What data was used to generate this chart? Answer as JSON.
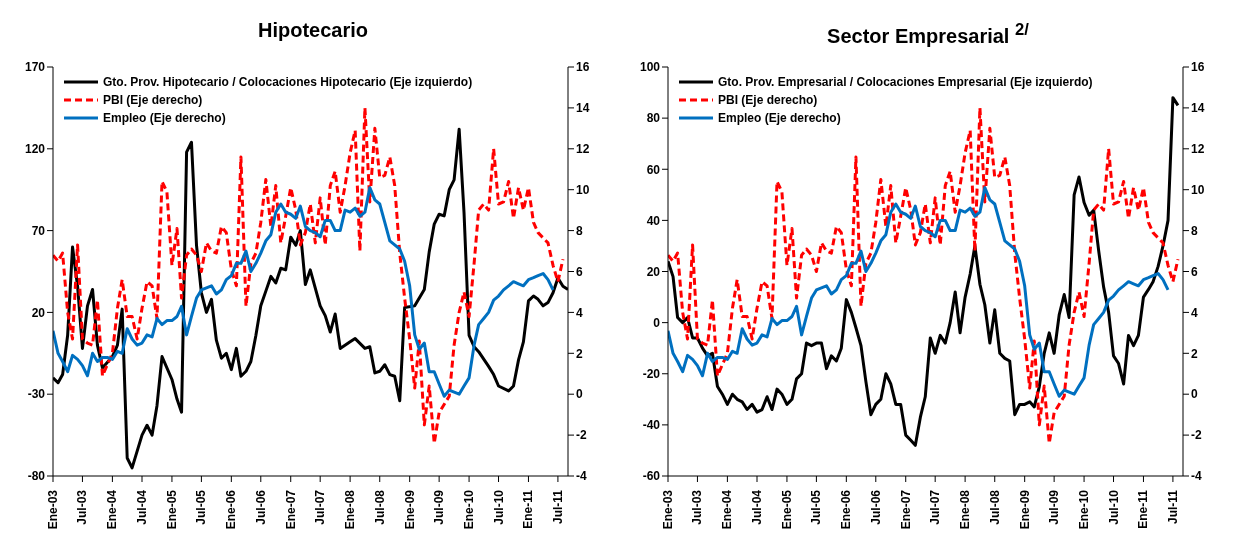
{
  "chart_data": [
    {
      "type": "line",
      "title": "Hipotecario",
      "legend": "top left",
      "marker": "none",
      "grid": false,
      "xlim": [
        "2003-01",
        "2011-09"
      ],
      "xticks": [
        {
          "value": "2003-01",
          "label": "Ene-03"
        },
        {
          "value": "2003-07",
          "label": "Jul-03"
        },
        {
          "value": "2004-01",
          "label": "Ene-04"
        },
        {
          "value": "2004-07",
          "label": "Jul-04"
        },
        {
          "value": "2005-01",
          "label": "Ene-05"
        },
        {
          "value": "2005-07",
          "label": "Jul-05"
        },
        {
          "value": "2006-01",
          "label": "Ene-06"
        },
        {
          "value": "2006-07",
          "label": "Jul-06"
        },
        {
          "value": "2007-01",
          "label": "Ene-07"
        },
        {
          "value": "2007-07",
          "label": "Jul-07"
        },
        {
          "value": "2008-01",
          "label": "Ene-08"
        },
        {
          "value": "2008-07",
          "label": "Jul-08"
        },
        {
          "value": "2009-01",
          "label": "Ene-09"
        },
        {
          "value": "2009-07",
          "label": "Jul-09"
        },
        {
          "value": "2010-01",
          "label": "Ene-10"
        },
        {
          "value": "2010-07",
          "label": "Jul-10"
        },
        {
          "value": "2011-01",
          "label": "Ene-11"
        },
        {
          "value": "2011-07",
          "label": "Jul-11"
        }
      ],
      "ylim": [
        -80,
        170
      ],
      "yticks": [
        -80,
        -30,
        20,
        70,
        120,
        170
      ],
      "y2lim": [
        -4,
        16
      ],
      "y2ticks": [
        -4,
        -2,
        0,
        2,
        4,
        6,
        8,
        10,
        12,
        14,
        16
      ],
      "series": [
        {
          "name": "Gto. Prov. Hipotecario / Colocaciones Hipotecario (Eje izquierdo)",
          "color": "#000000",
          "line_style": "solid",
          "x": [
            "2003-01",
            "2003-02",
            "2003-03",
            "2003-04",
            "2003-05",
            "2003-06",
            "2003-07",
            "2003-08",
            "2003-09",
            "2003-10",
            "2003-11",
            "2004-01",
            "2004-02",
            "2004-03",
            "2004-04",
            "2004-05",
            "2004-07",
            "2004-08",
            "2004-09",
            "2004-10",
            "2004-11",
            "2005-01",
            "2005-02",
            "2005-03",
            "2005-04",
            "2005-05",
            "2005-06",
            "2005-07",
            "2005-08",
            "2005-09",
            "2005-10",
            "2005-11",
            "2005-12",
            "2006-01",
            "2006-02",
            "2006-03",
            "2006-04",
            "2006-05",
            "2006-06",
            "2006-07",
            "2006-08",
            "2006-09",
            "2006-10",
            "2006-11",
            "2006-12",
            "2007-01",
            "2007-02",
            "2007-03",
            "2007-04",
            "2007-05",
            "2007-07",
            "2007-08",
            "2007-09",
            "2007-10",
            "2007-11",
            "2008-01",
            "2008-02",
            "2008-04",
            "2008-05",
            "2008-06",
            "2008-07",
            "2008-08",
            "2008-09",
            "2008-10",
            "2008-11",
            "2008-12",
            "2009-02",
            "2009-04",
            "2009-05",
            "2009-06",
            "2009-07",
            "2009-08",
            "2009-09",
            "2009-10",
            "2009-11",
            "2009-12",
            "2010-01",
            "2010-02",
            "2010-03",
            "2010-05",
            "2010-06",
            "2010-07",
            "2010-09",
            "2010-10",
            "2010-11",
            "2010-12",
            "2011-01",
            "2011-02",
            "2011-03",
            "2011-04",
            "2011-05",
            "2011-06",
            "2011-07",
            "2011-08",
            "2011-09"
          ],
          "values": [
            -20,
            -23,
            -18,
            6,
            60,
            36,
            -2,
            24,
            34,
            0,
            -14,
            -7,
            0,
            22,
            -69,
            -75,
            -55,
            -49,
            -55,
            -37,
            -7,
            -21,
            -33,
            -41,
            118,
            124,
            61,
            32,
            20,
            28,
            3,
            -8,
            -5,
            -15,
            -2,
            -19,
            -16,
            -10,
            6,
            24,
            33,
            42,
            38,
            47,
            46,
            66,
            61,
            70,
            37,
            46,
            24,
            18,
            8,
            19,
            -2,
            2,
            4,
            -2,
            -1,
            -17,
            -16,
            -12,
            -18,
            -19,
            -34,
            23,
            24,
            34,
            57,
            74,
            80,
            79,
            95,
            101,
            132,
            81,
            6,
            -1,
            -4,
            -13,
            -18,
            -25,
            -28,
            -25,
            -9,
            2,
            27,
            30,
            28,
            24,
            26,
            32,
            41,
            36,
            34
          ]
        },
        {
          "name": "PBI (Eje derecho)",
          "color": "#ff0000",
          "line_style": "dashed",
          "axis": "y2",
          "x": [
            "2003-01",
            "2003-02",
            "2003-03",
            "2003-04",
            "2003-05",
            "2003-06",
            "2003-07",
            "2003-08",
            "2003-09",
            "2003-10",
            "2003-11",
            "2004-01",
            "2004-02",
            "2004-03",
            "2004-04",
            "2004-05",
            "2004-06",
            "2004-07",
            "2004-08",
            "2004-09",
            "2004-10",
            "2004-11",
            "2004-12",
            "2005-01",
            "2005-02",
            "2005-03",
            "2005-04",
            "2005-05",
            "2005-06",
            "2005-07",
            "2005-08",
            "2005-09",
            "2005-10",
            "2005-11",
            "2005-12",
            "2006-01",
            "2006-02",
            "2006-03",
            "2006-04",
            "2006-05",
            "2006-06",
            "2006-07",
            "2006-08",
            "2006-09",
            "2006-10",
            "2006-11",
            "2006-12",
            "2007-01",
            "2007-02",
            "2007-03",
            "2007-04",
            "2007-05",
            "2007-06",
            "2007-07",
            "2007-08",
            "2007-09",
            "2007-10",
            "2007-11",
            "2007-12",
            "2008-01",
            "2008-02",
            "2008-03",
            "2008-04",
            "2008-05",
            "2008-06",
            "2008-07",
            "2008-08",
            "2008-09",
            "2008-10",
            "2008-11",
            "2008-12",
            "2009-01",
            "2009-02",
            "2009-03",
            "2009-04",
            "2009-05",
            "2009-06",
            "2009-07",
            "2009-09",
            "2009-10",
            "2009-11",
            "2009-12",
            "2010-01",
            "2010-02",
            "2010-03",
            "2010-04",
            "2010-05",
            "2010-06",
            "2010-07",
            "2010-08",
            "2010-09",
            "2010-10",
            "2010-11",
            "2010-12",
            "2011-01",
            "2011-02",
            "2011-03",
            "2011-05",
            "2011-06",
            "2011-07",
            "2011-08"
          ],
          "values": [
            6.8,
            6.5,
            6.9,
            4.0,
            2.7,
            7.3,
            2.7,
            2.5,
            2.4,
            4.6,
            0.9,
            2.0,
            4.2,
            5.6,
            3.8,
            3.8,
            2.7,
            4.2,
            5.5,
            5.3,
            3.7,
            10.4,
            9.9,
            6.3,
            8.1,
            4.7,
            6.8,
            7.1,
            6.8,
            6.0,
            7.4,
            7.0,
            6.9,
            8.2,
            7.9,
            6.1,
            5.3,
            11.6,
            4.3,
            6.4,
            6.9,
            8.4,
            10.5,
            8.2,
            10.2,
            7.4,
            8.7,
            10.1,
            9.0,
            7.3,
            7.9,
            9.3,
            7.4,
            9.6,
            7.3,
            10.2,
            10.9,
            8.9,
            10.2,
            11.8,
            12.9,
            7.0,
            14.0,
            9.4,
            13.0,
            10.6,
            10.7,
            11.6,
            10.2,
            6.9,
            4.7,
            2.7,
            0.3,
            2.6,
            -1.5,
            0.4,
            -2.4,
            -0.9,
            -0.1,
            2.4,
            4.0,
            5.0,
            3.8,
            6.4,
            9.0,
            9.3,
            9.0,
            12.0,
            9.3,
            9.4,
            10.4,
            8.6,
            10.1,
            9.0,
            10.1,
            8.4,
            7.9,
            7.4,
            6.3,
            5.5,
            6.6
          ]
        },
        {
          "name": "Empleo (Eje derecho)",
          "color": "#0070c0",
          "line_style": "solid",
          "axis": "y2",
          "x": [
            "2003-01",
            "2003-02",
            "2003-03",
            "2003-04",
            "2003-05",
            "2003-06",
            "2003-07",
            "2003-08",
            "2003-09",
            "2003-10",
            "2003-11",
            "2003-12",
            "2004-01",
            "2004-02",
            "2004-03",
            "2004-04",
            "2004-05",
            "2004-06",
            "2004-07",
            "2004-08",
            "2004-09",
            "2004-10",
            "2004-11",
            "2004-12",
            "2005-01",
            "2005-02",
            "2005-03",
            "2005-04",
            "2005-05",
            "2005-06",
            "2005-07",
            "2005-08",
            "2005-09",
            "2005-10",
            "2005-11",
            "2005-12",
            "2006-01",
            "2006-02",
            "2006-03",
            "2006-04",
            "2006-05",
            "2006-06",
            "2006-07",
            "2006-08",
            "2006-09",
            "2006-10",
            "2006-11",
            "2006-12",
            "2007-01",
            "2007-02",
            "2007-03",
            "2007-04",
            "2007-05",
            "2007-06",
            "2007-07",
            "2007-08",
            "2007-09",
            "2007-10",
            "2007-11",
            "2007-12",
            "2008-01",
            "2008-02",
            "2008-03",
            "2008-04",
            "2008-05",
            "2008-06",
            "2008-07",
            "2008-08",
            "2008-09",
            "2008-10",
            "2008-11",
            "2008-12",
            "2009-01",
            "2009-02",
            "2009-03",
            "2009-04",
            "2009-05",
            "2009-06",
            "2009-07",
            "2009-08",
            "2009-09",
            "2009-11",
            "2009-12",
            "2010-01",
            "2010-02",
            "2010-03",
            "2010-04",
            "2010-05",
            "2010-06",
            "2010-07",
            "2010-08",
            "2010-09",
            "2010-10",
            "2010-11",
            "2010-12",
            "2011-01",
            "2011-02",
            "2011-03",
            "2011-04",
            "2011-05",
            "2011-06"
          ],
          "values": [
            3.1,
            2.0,
            1.6,
            1.1,
            1.9,
            1.7,
            1.4,
            0.9,
            2.0,
            1.6,
            1.8,
            1.8,
            1.7,
            2.1,
            2.0,
            3.2,
            2.7,
            2.4,
            2.5,
            2.9,
            2.8,
            3.7,
            3.4,
            3.6,
            3.6,
            3.8,
            4.3,
            2.9,
            3.8,
            4.7,
            5.1,
            5.2,
            5.3,
            4.9,
            5.1,
            5.6,
            5.8,
            6.4,
            6.4,
            7.0,
            6.0,
            6.4,
            6.9,
            7.5,
            7.8,
            8.9,
            9.3,
            8.9,
            8.8,
            8.6,
            9.2,
            8.2,
            8.0,
            7.9,
            7.7,
            8.5,
            8.5,
            8.0,
            8.0,
            9.0,
            8.9,
            9.1,
            8.7,
            8.9,
            10.1,
            9.5,
            9.3,
            8.4,
            7.5,
            7.3,
            7.1,
            6.5,
            5.3,
            2.9,
            2.2,
            2.5,
            1.1,
            1.1,
            0.5,
            -0.1,
            0.2,
            0.0,
            0.4,
            0.8,
            2.4,
            3.4,
            3.7,
            4.0,
            4.6,
            4.8,
            5.1,
            5.3,
            5.5,
            5.4,
            5.3,
            5.6,
            5.7,
            5.8,
            5.9,
            5.6,
            5.1
          ]
        }
      ]
    },
    {
      "type": "line",
      "title": "Sector Empresarial $^{2/}$",
      "legend": "top left",
      "marker": "none",
      "grid": false,
      "xlim": [
        "2003-01",
        "2011-09"
      ],
      "xticks": [
        {
          "value": "2003-01",
          "label": "Ene-03"
        },
        {
          "value": "2003-07",
          "label": "Jul-03"
        },
        {
          "value": "2004-01",
          "label": "Ene-04"
        },
        {
          "value": "2004-07",
          "label": "Jul-04"
        },
        {
          "value": "2005-01",
          "label": "Ene-05"
        },
        {
          "value": "2005-07",
          "label": "Jul-05"
        },
        {
          "value": "2006-01",
          "label": "Ene-06"
        },
        {
          "value": "2006-07",
          "label": "Jul-06"
        },
        {
          "value": "2007-01",
          "label": "Ene-07"
        },
        {
          "value": "2007-07",
          "label": "Jul-07"
        },
        {
          "value": "2008-01",
          "label": "Ene-08"
        },
        {
          "value": "2008-07",
          "label": "Jul-08"
        },
        {
          "value": "2009-01",
          "label": "Ene-09"
        },
        {
          "value": "2009-07",
          "label": "Jul-09"
        },
        {
          "value": "2010-01",
          "label": "Ene-10"
        },
        {
          "value": "2010-07",
          "label": "Jul-10"
        },
        {
          "value": "2011-01",
          "label": "Ene-11"
        },
        {
          "value": "2011-07",
          "label": "Jul-11"
        }
      ],
      "ylim": [
        -60,
        100
      ],
      "yticks": [
        -60,
        -40,
        -20,
        0,
        20,
        40,
        60,
        80,
        100
      ],
      "y2lim": [
        -4,
        16
      ],
      "y2ticks": [
        -4,
        -2,
        0,
        2,
        4,
        6,
        8,
        10,
        12,
        14,
        16
      ],
      "series": [
        {
          "name": "Gto. Prov. Empresarial / Colocaciones Empresarial (Eje izquierdo)",
          "color": "#000000",
          "line_style": "solid",
          "x": [
            "2003-01",
            "2003-02",
            "2003-03",
            "2003-04",
            "2003-05",
            "2003-06",
            "2003-07",
            "2003-08",
            "2003-09",
            "2003-10",
            "2003-11",
            "2003-12",
            "2004-01",
            "2004-02",
            "2004-03",
            "2004-04",
            "2004-05",
            "2004-06",
            "2004-07",
            "2004-08",
            "2004-09",
            "2004-10",
            "2004-11",
            "2004-12",
            "2005-01",
            "2005-02",
            "2005-03",
            "2005-04",
            "2005-05",
            "2005-06",
            "2005-07",
            "2005-08",
            "2005-09",
            "2005-10",
            "2005-11",
            "2005-12",
            "2006-01",
            "2006-02",
            "2006-03",
            "2006-04",
            "2006-05",
            "2006-06",
            "2006-07",
            "2006-08",
            "2006-09",
            "2006-10",
            "2006-11",
            "2006-12",
            "2007-01",
            "2007-02",
            "2007-03",
            "2007-04",
            "2007-05",
            "2007-06",
            "2007-07",
            "2007-08",
            "2007-09",
            "2007-10",
            "2007-11",
            "2007-12",
            "2008-01",
            "2008-02",
            "2008-03",
            "2008-04",
            "2008-05",
            "2008-06",
            "2008-07",
            "2008-08",
            "2008-09",
            "2008-10",
            "2008-11",
            "2008-12",
            "2009-01",
            "2009-02",
            "2009-03",
            "2009-04",
            "2009-05",
            "2009-06",
            "2009-07",
            "2009-08",
            "2009-09",
            "2009-10",
            "2009-11",
            "2009-12",
            "2010-01",
            "2010-02",
            "2010-03",
            "2010-04",
            "2010-05",
            "2010-06",
            "2010-07",
            "2010-08",
            "2010-09",
            "2010-10",
            "2010-11",
            "2010-12",
            "2011-01",
            "2011-02",
            "2011-03",
            "2011-04",
            "2011-05",
            "2011-06",
            "2011-07",
            "2011-08"
          ],
          "values": [
            24,
            18,
            2,
            0,
            2,
            -6,
            -6,
            -10,
            -13,
            -12,
            -25,
            -28,
            -32,
            -28,
            -30,
            -31,
            -34,
            -32,
            -35,
            -34,
            -29,
            -34,
            -26,
            -28,
            -32,
            -30,
            -22,
            -20,
            -8,
            -9,
            -8,
            -8,
            -18,
            -13,
            -15,
            -10,
            9,
            4,
            -2,
            -9,
            -23,
            -36,
            -32,
            -30,
            -20,
            -24,
            -32,
            -32,
            -44,
            -46,
            -48,
            -37,
            -29,
            -6,
            -12,
            -5,
            -8,
            0,
            12,
            -4,
            10,
            19,
            30,
            15,
            7,
            -8,
            5,
            -12,
            -14,
            -15,
            -36,
            -32,
            -32,
            -31,
            -33,
            -25,
            -12,
            -4,
            -12,
            3,
            11,
            2,
            50,
            57,
            47,
            42,
            44,
            28,
            14,
            4,
            -13,
            -16,
            -24,
            -5,
            -9,
            -5,
            10,
            13,
            16,
            22,
            30,
            40,
            88,
            85
          ]
        },
        {
          "name": "PBI (Eje derecho)",
          "color": "#ff0000",
          "line_style": "dashed",
          "axis": "y2",
          "x": [
            "2003-01",
            "2003-02",
            "2003-03",
            "2003-04",
            "2003-05",
            "2003-06",
            "2003-07",
            "2003-08",
            "2003-09",
            "2003-10",
            "2003-11",
            "2004-01",
            "2004-02",
            "2004-03",
            "2004-04",
            "2004-05",
            "2004-06",
            "2004-07",
            "2004-08",
            "2004-09",
            "2004-10",
            "2004-11",
            "2004-12",
            "2005-01",
            "2005-02",
            "2005-03",
            "2005-04",
            "2005-05",
            "2005-06",
            "2005-07",
            "2005-08",
            "2005-09",
            "2005-10",
            "2005-11",
            "2005-12",
            "2006-01",
            "2006-02",
            "2006-03",
            "2006-04",
            "2006-05",
            "2006-06",
            "2006-07",
            "2006-08",
            "2006-09",
            "2006-10",
            "2006-11",
            "2006-12",
            "2007-01",
            "2007-02",
            "2007-03",
            "2007-04",
            "2007-05",
            "2007-06",
            "2007-07",
            "2007-08",
            "2007-09",
            "2007-10",
            "2007-11",
            "2007-12",
            "2008-01",
            "2008-02",
            "2008-03",
            "2008-04",
            "2008-05",
            "2008-06",
            "2008-07",
            "2008-08",
            "2008-09",
            "2008-10",
            "2008-11",
            "2008-12",
            "2009-01",
            "2009-02",
            "2009-03",
            "2009-04",
            "2009-05",
            "2009-06",
            "2009-07",
            "2009-09",
            "2009-10",
            "2009-11",
            "2009-12",
            "2010-01",
            "2010-02",
            "2010-03",
            "2010-04",
            "2010-05",
            "2010-06",
            "2010-07",
            "2010-08",
            "2010-09",
            "2010-10",
            "2010-11",
            "2010-12",
            "2011-01",
            "2011-02",
            "2011-03",
            "2011-05",
            "2011-06",
            "2011-07",
            "2011-08"
          ],
          "values": [
            6.8,
            6.5,
            6.9,
            4.0,
            2.7,
            7.3,
            2.7,
            2.5,
            2.4,
            4.6,
            0.9,
            2.0,
            4.2,
            5.6,
            3.8,
            3.8,
            2.7,
            4.2,
            5.5,
            5.3,
            3.7,
            10.4,
            9.9,
            6.3,
            8.1,
            4.7,
            6.8,
            7.1,
            6.8,
            6.0,
            7.4,
            7.0,
            6.9,
            8.2,
            7.9,
            6.1,
            5.3,
            11.6,
            4.3,
            6.4,
            6.9,
            8.4,
            10.5,
            8.2,
            10.2,
            7.4,
            8.7,
            10.1,
            9.0,
            7.3,
            7.9,
            9.3,
            7.4,
            9.6,
            7.3,
            10.2,
            10.9,
            8.9,
            10.2,
            11.8,
            12.9,
            7.0,
            14.0,
            9.4,
            13.0,
            10.6,
            10.7,
            11.6,
            10.2,
            6.9,
            4.7,
            2.7,
            0.3,
            2.6,
            -1.5,
            0.4,
            -2.4,
            -0.9,
            -0.1,
            2.4,
            4.0,
            5.0,
            3.8,
            6.4,
            9.0,
            9.3,
            9.0,
            12.0,
            9.3,
            9.4,
            10.4,
            8.6,
            10.1,
            9.0,
            10.1,
            8.4,
            7.9,
            7.4,
            6.3,
            5.5,
            6.6
          ]
        },
        {
          "name": "Empleo (Eje derecho)",
          "color": "#0070c0",
          "line_style": "solid",
          "axis": "y2",
          "x": [
            "2003-01",
            "2003-02",
            "2003-03",
            "2003-04",
            "2003-05",
            "2003-06",
            "2003-07",
            "2003-08",
            "2003-09",
            "2003-10",
            "2003-11",
            "2003-12",
            "2004-01",
            "2004-02",
            "2004-03",
            "2004-04",
            "2004-05",
            "2004-06",
            "2004-07",
            "2004-08",
            "2004-09",
            "2004-10",
            "2004-11",
            "2004-12",
            "2005-01",
            "2005-02",
            "2005-03",
            "2005-04",
            "2005-05",
            "2005-06",
            "2005-07",
            "2005-08",
            "2005-09",
            "2005-10",
            "2005-11",
            "2005-12",
            "2006-01",
            "2006-02",
            "2006-03",
            "2006-04",
            "2006-05",
            "2006-06",
            "2006-07",
            "2006-08",
            "2006-09",
            "2006-10",
            "2006-11",
            "2006-12",
            "2007-01",
            "2007-02",
            "2007-03",
            "2007-04",
            "2007-05",
            "2007-06",
            "2007-07",
            "2007-08",
            "2007-09",
            "2007-10",
            "2007-11",
            "2007-12",
            "2008-01",
            "2008-02",
            "2008-03",
            "2008-04",
            "2008-05",
            "2008-06",
            "2008-07",
            "2008-08",
            "2008-09",
            "2008-10",
            "2008-11",
            "2008-12",
            "2009-01",
            "2009-02",
            "2009-03",
            "2009-04",
            "2009-05",
            "2009-06",
            "2009-07",
            "2009-08",
            "2009-09",
            "2009-11",
            "2009-12",
            "2010-01",
            "2010-02",
            "2010-03",
            "2010-04",
            "2010-05",
            "2010-06",
            "2010-07",
            "2010-08",
            "2010-09",
            "2010-10",
            "2010-11",
            "2010-12",
            "2011-01",
            "2011-02",
            "2011-03",
            "2011-04",
            "2011-05",
            "2011-06"
          ],
          "values": [
            3.1,
            2.0,
            1.6,
            1.1,
            1.9,
            1.7,
            1.4,
            0.9,
            2.0,
            1.6,
            1.8,
            1.8,
            1.7,
            2.1,
            2.0,
            3.2,
            2.7,
            2.4,
            2.5,
            2.9,
            2.8,
            3.7,
            3.4,
            3.6,
            3.6,
            3.8,
            4.3,
            2.9,
            3.8,
            4.7,
            5.1,
            5.2,
            5.3,
            4.9,
            5.1,
            5.6,
            5.8,
            6.4,
            6.4,
            7.0,
            6.0,
            6.4,
            6.9,
            7.5,
            7.8,
            8.9,
            9.3,
            8.9,
            8.8,
            8.6,
            9.2,
            8.2,
            8.0,
            7.9,
            7.7,
            8.5,
            8.5,
            8.0,
            8.0,
            9.0,
            8.9,
            9.1,
            8.7,
            8.9,
            10.1,
            9.5,
            9.3,
            8.4,
            7.5,
            7.3,
            7.1,
            6.5,
            5.3,
            2.9,
            2.2,
            2.5,
            1.1,
            1.1,
            0.5,
            -0.1,
            0.2,
            0.0,
            0.4,
            0.8,
            2.4,
            3.4,
            3.7,
            4.0,
            4.6,
            4.8,
            5.1,
            5.3,
            5.5,
            5.4,
            5.3,
            5.6,
            5.7,
            5.8,
            5.9,
            5.6,
            5.1
          ]
        }
      ]
    }
  ]
}
